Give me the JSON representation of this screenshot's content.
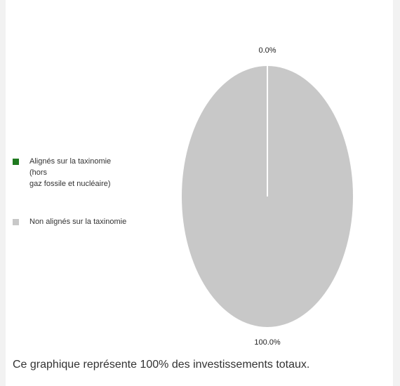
{
  "chart_data": {
    "type": "pie",
    "series": [
      {
        "name": "Alignés sur la taxinomie\n(hors\ngaz fossile et nucléaire)",
        "color": "#1f7a1f"
      },
      {
        "name": "Non alignés sur la taxinomie",
        "color": "#c8c8c8"
      }
    ],
    "values": [
      0,
      100
    ],
    "value_labels": [
      "0.0%",
      "100.0%"
    ],
    "caption": "Ce graphique représente 100% des investissements totaux."
  }
}
